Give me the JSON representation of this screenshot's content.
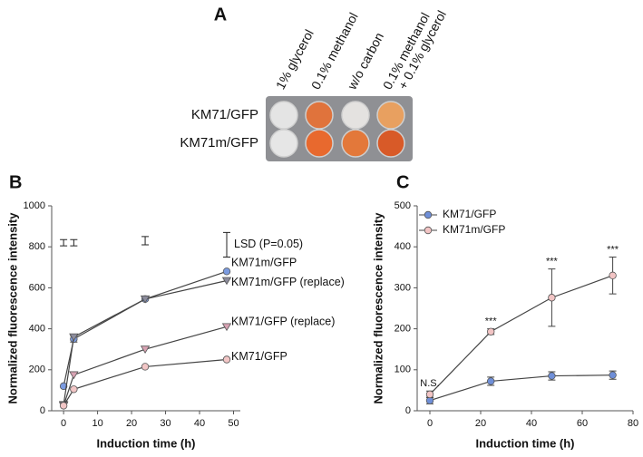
{
  "panel_a": {
    "panel_label": "A",
    "columns": [
      [
        "1% glycerol"
      ],
      [
        "0.1% methanol"
      ],
      [
        "w/o carbon"
      ],
      [
        "0.1% methanol",
        "+ 0.1% glycerol"
      ]
    ],
    "rows": [
      "KM71/GFP",
      "KM71m/GFP"
    ],
    "well_colors": [
      [
        "#e4e4e4",
        "#e0733c",
        "#e4e2e0",
        "#e8a060"
      ],
      [
        "#e6e6e6",
        "#e8692e",
        "#e3783a",
        "#d85a28"
      ]
    ]
  },
  "chart_data": [
    {
      "type": "line",
      "panel_label": "B",
      "x_label": "Induction time (h)",
      "y_label": "Normalized fluorescence intensity",
      "x": [
        0,
        3,
        24,
        48
      ],
      "xlim": [
        -3.5,
        52
      ],
      "xticks": [
        0,
        10,
        20,
        30,
        40,
        50
      ],
      "ylim": [
        0,
        1000
      ],
      "yticks": [
        0,
        200,
        400,
        600,
        800,
        1000
      ],
      "series": [
        {
          "name": "KM71m/GFP",
          "color": "#7b9be0",
          "marker": "circle",
          "values": [
            120,
            350,
            545,
            680
          ],
          "errors": [
            null,
            15,
            null,
            null
          ]
        },
        {
          "name": "KM71m/GFP (replace)",
          "color": "#8c8c9c",
          "marker": "triangle",
          "values": [
            30,
            360,
            545,
            635
          ]
        },
        {
          "name": "KM71/GFP (replace)",
          "color": "#d7a2b2",
          "marker": "triangle",
          "values": [
            25,
            175,
            300,
            410
          ]
        },
        {
          "name": "KM71/GFP",
          "color": "#f2c6c6",
          "marker": "circle",
          "values": [
            25,
            105,
            215,
            250
          ]
        }
      ],
      "lsd": {
        "label": "LSD (P=0.05)",
        "x": [
          0,
          3,
          24,
          48
        ],
        "values": [
          820,
          820,
          830,
          810
        ],
        "errors": [
          15,
          15,
          20,
          60
        ]
      }
    },
    {
      "type": "line",
      "panel_label": "C",
      "x_label": "Induction time (h)",
      "y_label": "Normalized fluorescence intensity",
      "x": [
        0,
        24,
        48,
        72
      ],
      "xlim": [
        -5,
        80
      ],
      "xticks": [
        0,
        20,
        40,
        60,
        80
      ],
      "ylim": [
        0,
        500
      ],
      "yticks": [
        0,
        100,
        200,
        300,
        400,
        500
      ],
      "legend": "upper left",
      "series": [
        {
          "name": "KM71/GFP",
          "color": "#6f8fd8",
          "marker": "circle",
          "values": [
            25,
            72,
            85,
            87
          ],
          "errors": [
            8,
            10,
            10,
            10
          ]
        },
        {
          "name": "KM71m/GFP",
          "color": "#f2c4c4",
          "marker": "circle",
          "values": [
            40,
            193,
            276,
            330
          ],
          "errors": [
            8,
            7,
            70,
            45
          ]
        }
      ],
      "annotations": {
        "x": [
          0,
          24,
          48,
          72
        ],
        "labels": [
          "N.S.",
          "***",
          "***",
          "***"
        ]
      }
    }
  ]
}
